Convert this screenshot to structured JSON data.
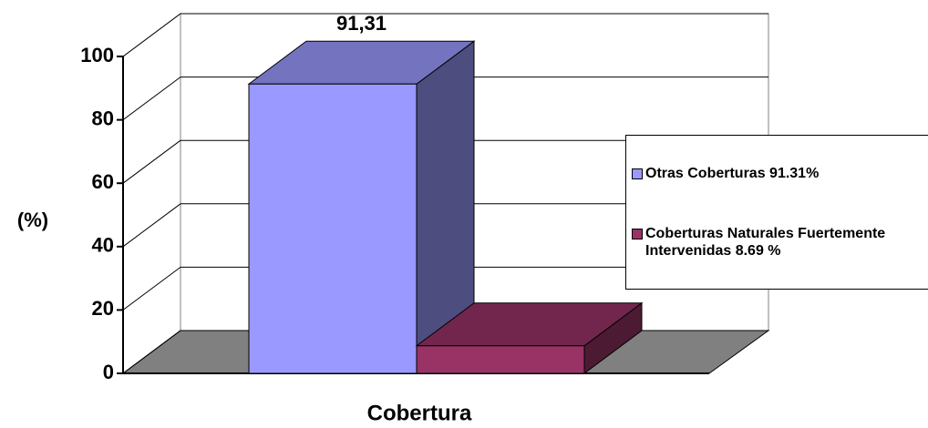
{
  "chart_data": {
    "type": "bar3d",
    "y_label": "(%)",
    "x_label": "Cobertura",
    "series": [
      {
        "name": "Otras Coberturas 91.31%",
        "color": "#9999ff",
        "values": [
          91.31
        ],
        "value_labels": [
          "91,31"
        ]
      },
      {
        "name": "Coberturas Naturales Fuertemente Intervenidas 8.69 %",
        "color": "#993366",
        "values": [
          8.69
        ]
      }
    ],
    "ylim": [
      0,
      100
    ],
    "yticks": [
      0,
      20,
      40,
      60,
      80,
      100
    ],
    "grid": true,
    "legend": "right"
  }
}
